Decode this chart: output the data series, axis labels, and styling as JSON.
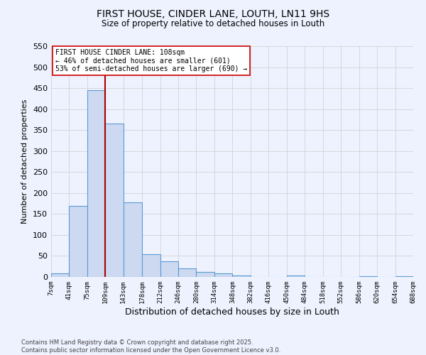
{
  "title1": "FIRST HOUSE, CINDER LANE, LOUTH, LN11 9HS",
  "title2": "Size of property relative to detached houses in Louth",
  "xlabel": "Distribution of detached houses by size in Louth",
  "ylabel": "Number of detached properties",
  "bar_values": [
    8,
    170,
    445,
    365,
    178,
    55,
    38,
    20,
    12,
    8,
    3,
    0,
    0,
    3,
    0,
    0,
    0,
    2,
    0,
    2
  ],
  "bin_edges": [
    7,
    41,
    75,
    109,
    143,
    178,
    212,
    246,
    280,
    314,
    348,
    382,
    416,
    450,
    484,
    518,
    552,
    586,
    620,
    654,
    688
  ],
  "tick_labels": [
    "7sqm",
    "41sqm",
    "75sqm",
    "109sqm",
    "143sqm",
    "178sqm",
    "212sqm",
    "246sqm",
    "280sqm",
    "314sqm",
    "348sqm",
    "382sqm",
    "416sqm",
    "450sqm",
    "484sqm",
    "518sqm",
    "552sqm",
    "586sqm",
    "620sqm",
    "654sqm",
    "688sqm"
  ],
  "bar_face_color": "#ccd9f0",
  "bar_edge_color": "#5b9bd5",
  "vline_x": 109,
  "vline_color": "#aa0000",
  "annotation_text": "FIRST HOUSE CINDER LANE: 108sqm\n← 46% of detached houses are smaller (601)\n53% of semi-detached houses are larger (690) →",
  "annotation_box_color": "#ffffff",
  "annotation_box_edge": "#cc0000",
  "ylim": [
    0,
    550
  ],
  "yticks": [
    0,
    50,
    100,
    150,
    200,
    250,
    300,
    350,
    400,
    450,
    500,
    550
  ],
  "grid_color": "#cccccc",
  "bg_color": "#eef2ff",
  "footer1": "Contains HM Land Registry data © Crown copyright and database right 2025.",
  "footer2": "Contains public sector information licensed under the Open Government Licence v3.0."
}
